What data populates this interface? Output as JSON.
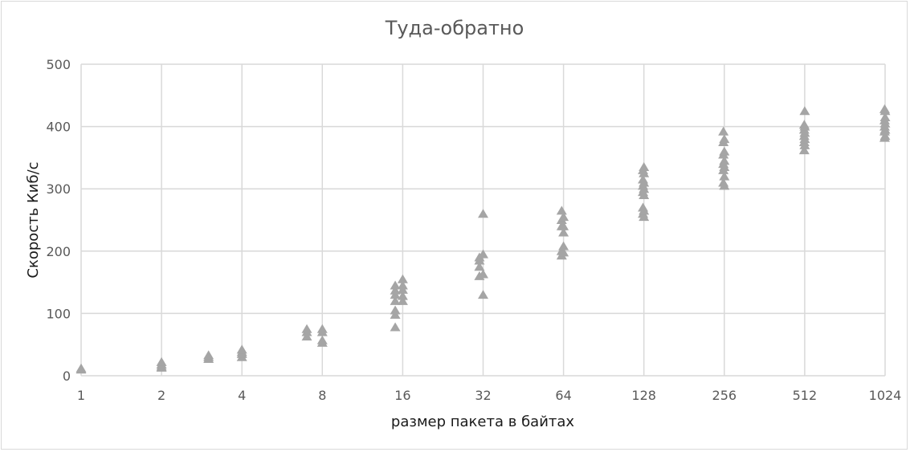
{
  "chart_data": {
    "type": "scatter",
    "title": "Туда-обратно",
    "xlabel": "размер пакета в байтах",
    "ylabel": "Скорость Киб/с",
    "x_scale": "log2",
    "xlim": [
      1,
      1024
    ],
    "ylim": [
      0,
      500
    ],
    "y_ticks": [
      "0",
      "100",
      "200",
      "300",
      "400",
      "500"
    ],
    "x_ticks": [
      "1",
      "2",
      "4",
      "8",
      "16",
      "32",
      "64",
      "128",
      "256",
      "512",
      "1024"
    ],
    "x_tick_values": [
      1,
      2,
      4,
      8,
      16,
      32,
      64,
      128,
      256,
      512,
      1024
    ],
    "grid": true,
    "marker": "triangle",
    "marker_color": "#a5a5a5",
    "series": [
      {
        "points": [
          [
            1,
            10
          ],
          [
            1,
            12
          ],
          [
            2,
            13
          ],
          [
            2,
            15
          ],
          [
            2,
            18
          ],
          [
            2,
            22
          ],
          [
            3,
            27
          ],
          [
            3,
            30
          ],
          [
            3,
            33
          ],
          [
            4,
            30
          ],
          [
            4,
            35
          ],
          [
            4,
            38
          ],
          [
            4,
            42
          ],
          [
            7,
            63
          ],
          [
            7,
            70
          ],
          [
            7,
            75
          ],
          [
            8,
            53
          ],
          [
            8,
            57
          ],
          [
            8,
            70
          ],
          [
            8,
            75
          ],
          [
            15,
            78
          ],
          [
            15,
            98
          ],
          [
            15,
            105
          ],
          [
            15,
            120
          ],
          [
            15,
            130
          ],
          [
            15,
            137
          ],
          [
            15,
            145
          ],
          [
            16,
            120
          ],
          [
            16,
            128
          ],
          [
            16,
            138
          ],
          [
            16,
            145
          ],
          [
            16,
            155
          ],
          [
            31,
            160
          ],
          [
            31,
            175
          ],
          [
            31,
            185
          ],
          [
            31,
            190
          ],
          [
            32,
            130
          ],
          [
            32,
            163
          ],
          [
            32,
            195
          ],
          [
            32,
            260
          ],
          [
            63,
            193
          ],
          [
            63,
            200
          ],
          [
            63,
            240
          ],
          [
            63,
            250
          ],
          [
            63,
            265
          ],
          [
            64,
            198
          ],
          [
            64,
            208
          ],
          [
            64,
            230
          ],
          [
            64,
            240
          ],
          [
            64,
            255
          ],
          [
            127,
            260
          ],
          [
            127,
            270
          ],
          [
            127,
            295
          ],
          [
            127,
            305
          ],
          [
            127,
            315
          ],
          [
            127,
            330
          ],
          [
            128,
            255
          ],
          [
            128,
            265
          ],
          [
            128,
            290
          ],
          [
            128,
            300
          ],
          [
            128,
            310
          ],
          [
            128,
            325
          ],
          [
            128,
            335
          ],
          [
            254,
            310
          ],
          [
            254,
            330
          ],
          [
            254,
            340
          ],
          [
            254,
            355
          ],
          [
            254,
            375
          ],
          [
            254,
            392
          ],
          [
            256,
            305
          ],
          [
            256,
            320
          ],
          [
            256,
            335
          ],
          [
            256,
            345
          ],
          [
            256,
            360
          ],
          [
            256,
            380
          ],
          [
            510,
            362
          ],
          [
            510,
            375
          ],
          [
            510,
            385
          ],
          [
            510,
            395
          ],
          [
            510,
            403
          ],
          [
            512,
            370
          ],
          [
            512,
            380
          ],
          [
            512,
            390
          ],
          [
            512,
            400
          ],
          [
            512,
            425
          ],
          [
            1020,
            382
          ],
          [
            1020,
            392
          ],
          [
            1020,
            400
          ],
          [
            1020,
            410
          ],
          [
            1020,
            428
          ],
          [
            1024,
            385
          ],
          [
            1024,
            395
          ],
          [
            1024,
            405
          ],
          [
            1024,
            415
          ],
          [
            1024,
            425
          ]
        ]
      }
    ]
  }
}
